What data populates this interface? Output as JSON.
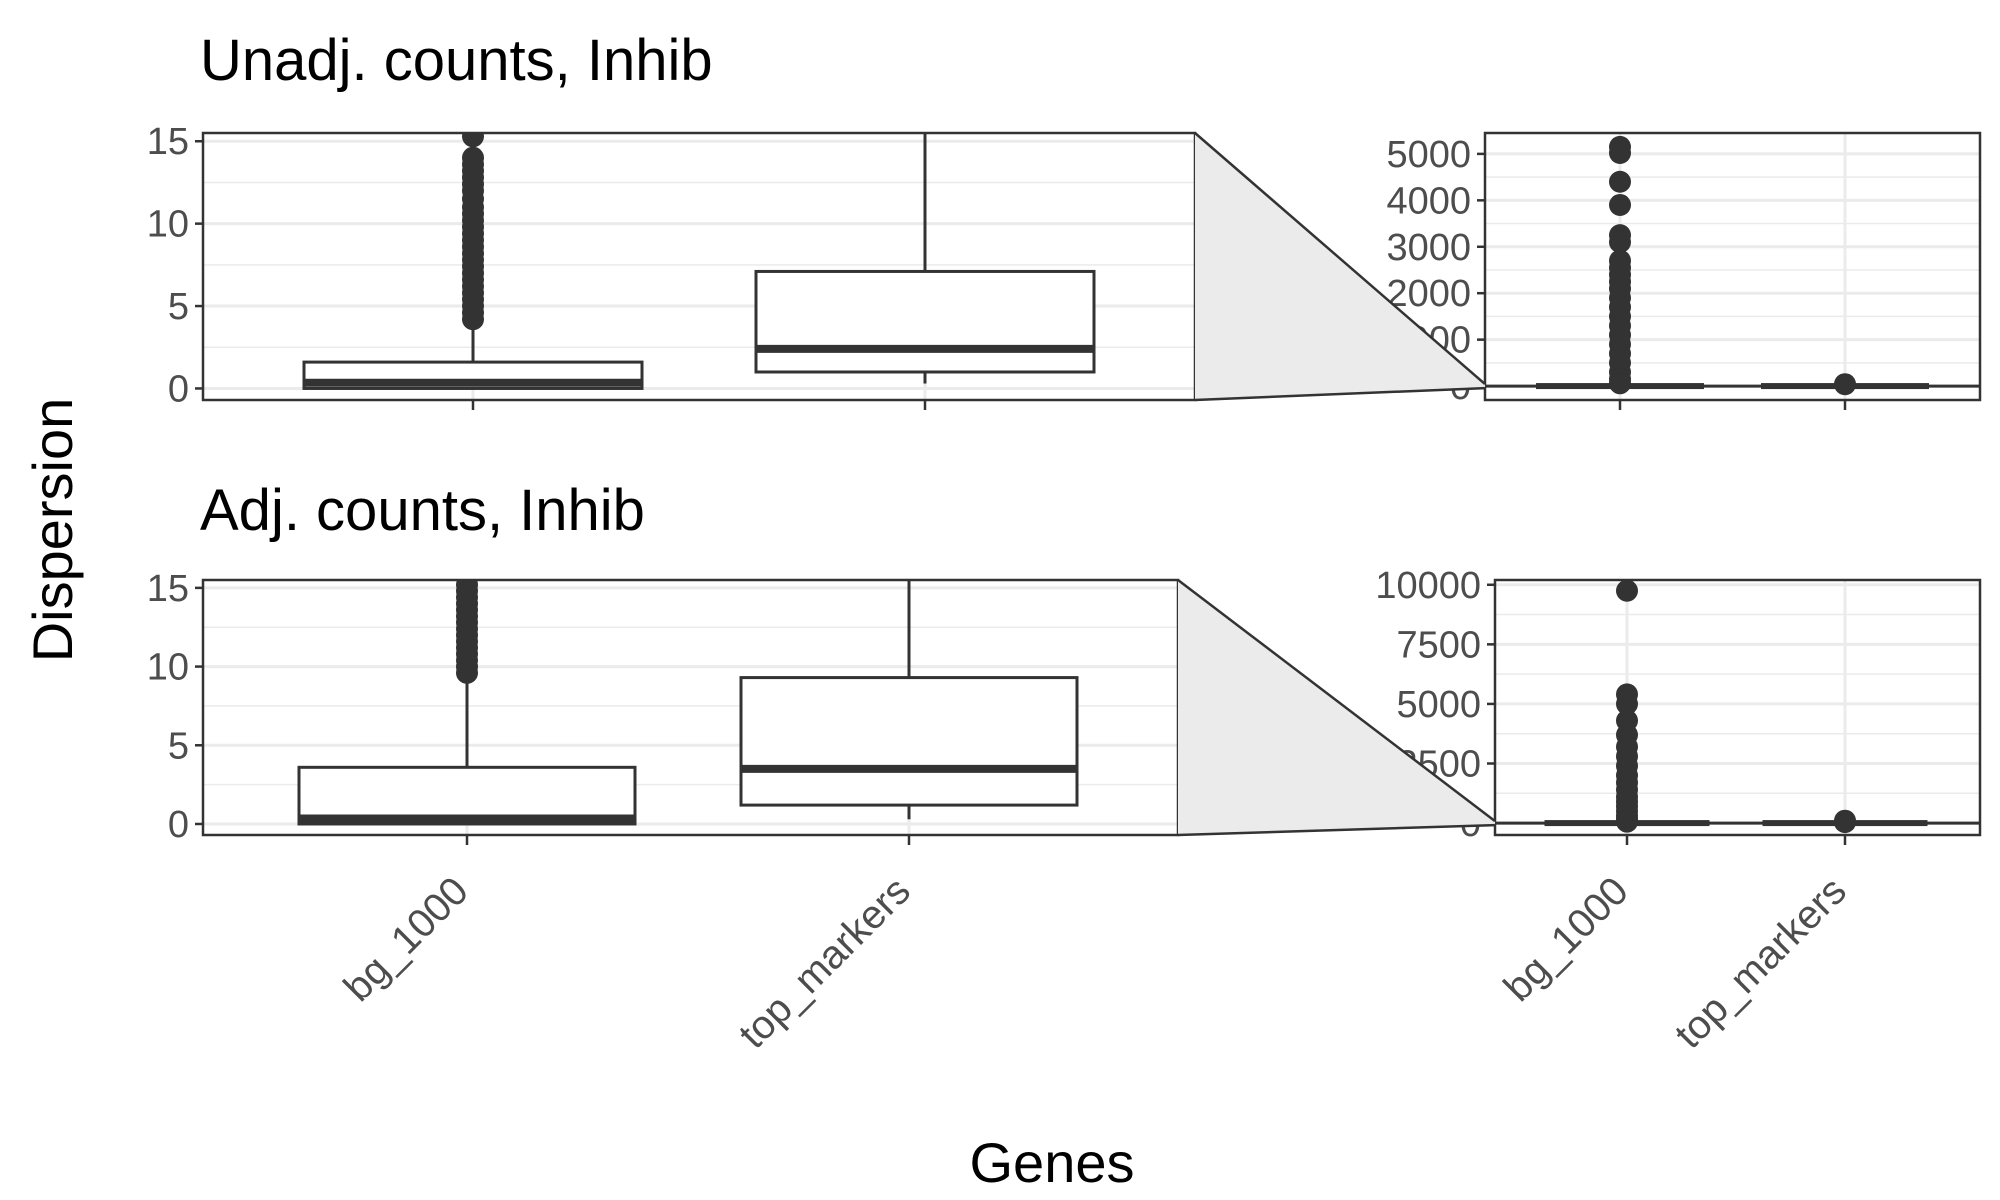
{
  "chart_data": {
    "type": "boxplot",
    "ylabel": "Dispersion",
    "xlabel": "Genes",
    "categories": [
      "bg_1000",
      "top_markers"
    ],
    "rows": [
      {
        "title": "Unadj. counts, Inhib",
        "zoom": {
          "ylim": [
            -0.7,
            15.5
          ],
          "yticks": [
            0,
            5,
            10,
            15
          ],
          "boxes": [
            {
              "category": "bg_1000",
              "q1": 0.0,
              "median": 0.35,
              "q3": 1.6,
              "whisker_low": 0.0,
              "whisker_high": 3.9,
              "outliers": [
                4.2,
                4.6,
                5.0,
                5.4,
                5.8,
                6.2,
                6.6,
                7.0,
                7.4,
                7.8,
                8.2,
                8.6,
                9.0,
                9.4,
                9.8,
                10.2,
                10.6,
                11.0,
                11.5,
                12.0,
                12.4,
                12.8,
                13.2,
                13.6,
                14.0,
                15.3
              ]
            },
            {
              "category": "top_markers",
              "q1": 1.0,
              "median": 2.4,
              "q3": 7.1,
              "whisker_low": 0.3,
              "whisker_high": 15.5,
              "outliers": []
            }
          ]
        },
        "full": {
          "ylim": [
            -300,
            5450
          ],
          "yticks": [
            0,
            1000,
            2000,
            3000,
            4000,
            5000
          ],
          "tick_labels": [
            "0",
            "1000",
            "2000",
            "3000",
            "4000",
            "5000"
          ],
          "outliers": [
            {
              "category": "bg_1000",
              "values": [
                5150,
                5020,
                4400,
                3900,
                3250,
                3100,
                2700,
                2550,
                2400,
                2250,
                2100,
                1900,
                1700,
                1500,
                1300,
                1100,
                900,
                700,
                500,
                300,
                150,
                60
              ]
            },
            {
              "category": "top_markers",
              "values": [
                40
              ]
            }
          ]
        }
      },
      {
        "title": "Adj. counts, Inhib",
        "zoom": {
          "ylim": [
            -0.7,
            15.5
          ],
          "yticks": [
            0,
            5,
            10,
            15
          ],
          "boxes": [
            {
              "category": "bg_1000",
              "q1": 0.0,
              "median": 0.35,
              "q3": 3.6,
              "whisker_low": 0.0,
              "whisker_high": 9.3,
              "outliers": [
                9.6,
                10.0,
                10.4,
                10.8,
                11.2,
                11.6,
                12.0,
                12.4,
                12.8,
                13.2,
                13.6,
                14.0,
                14.4,
                14.8,
                15.2
              ]
            },
            {
              "category": "top_markers",
              "q1": 1.2,
              "median": 3.5,
              "q3": 9.3,
              "whisker_low": 0.3,
              "whisker_high": 15.5,
              "outliers": []
            }
          ]
        },
        "full": {
          "ylim": [
            -500,
            10200
          ],
          "yticks": [
            0,
            2500,
            5000,
            7500,
            10000
          ],
          "tick_labels": [
            "0",
            "2500",
            "5000",
            "7500",
            "10000"
          ],
          "outliers": [
            {
              "category": "bg_1000",
              "values": [
                9750,
                5400,
                5000,
                4300,
                3700,
                3200,
                2800,
                2400,
                2000,
                1700,
                1400,
                1100,
                900,
                700,
                500,
                300,
                150,
                60
              ]
            },
            {
              "category": "top_markers",
              "values": [
                100,
                40
              ]
            }
          ]
        }
      }
    ],
    "colors": {
      "box_stroke": "#333333",
      "point": "#333333",
      "grid": "#ebebeb",
      "panel_border": "#333333",
      "zoom_fill": "#ebebeb"
    }
  }
}
